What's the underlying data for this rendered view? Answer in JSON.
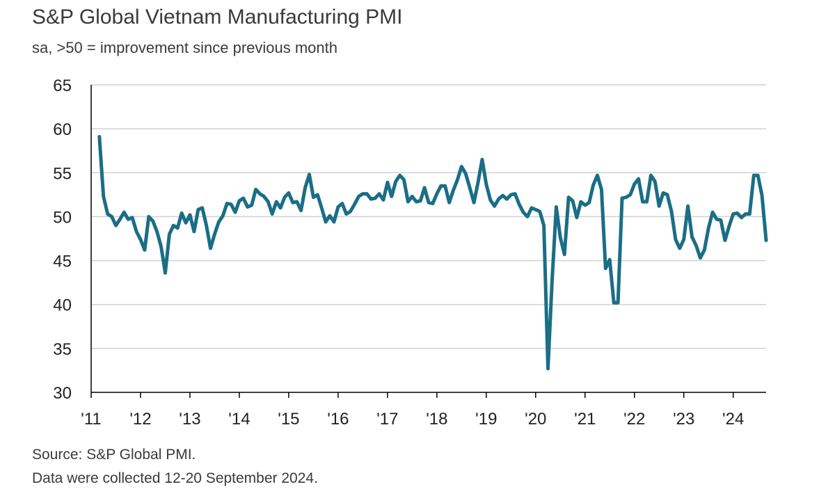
{
  "colors": {
    "line": "#1a6e86",
    "grid": "#d0d0d0",
    "text": "#333333"
  },
  "footer": {
    "source": "Source: S&P Global PMI.",
    "collected": "Data were collected 12-20 September 2024."
  },
  "chart_data": {
    "type": "line",
    "title": "S&P Global Vietnam Manufacturing PMI",
    "subtitle": "sa, >50 = improvement since previous month",
    "ylim": [
      30,
      65
    ],
    "yticks": [
      30,
      35,
      40,
      45,
      50,
      55,
      60,
      65
    ],
    "xlim": [
      "2011-01",
      "2024-09"
    ],
    "xticks": [
      {
        "date": "2011-01",
        "label": "'11"
      },
      {
        "date": "2012-01",
        "label": "'12"
      },
      {
        "date": "2013-01",
        "label": "'13"
      },
      {
        "date": "2014-01",
        "label": "'14"
      },
      {
        "date": "2015-01",
        "label": "'15"
      },
      {
        "date": "2016-01",
        "label": "'16"
      },
      {
        "date": "2017-01",
        "label": "'17"
      },
      {
        "date": "2018-01",
        "label": "'18"
      },
      {
        "date": "2019-01",
        "label": "'19"
      },
      {
        "date": "2020-01",
        "label": "'20"
      },
      {
        "date": "2021-01",
        "label": "'21"
      },
      {
        "date": "2022-01",
        "label": "'22"
      },
      {
        "date": "2023-01",
        "label": "'23"
      },
      {
        "date": "2024-01",
        "label": "'24"
      }
    ],
    "grid": true,
    "legend": "none",
    "series": [
      {
        "x": [
          "2011-03",
          "2011-04",
          "2011-05",
          "2011-06",
          "2011-07",
          "2011-08",
          "2011-09",
          "2011-10",
          "2011-11",
          "2011-12",
          "2012-01",
          "2012-02",
          "2012-03",
          "2012-04",
          "2012-05",
          "2012-06",
          "2012-07",
          "2012-08",
          "2012-09",
          "2012-10",
          "2012-11",
          "2012-12",
          "2013-01",
          "2013-02",
          "2013-03",
          "2013-04",
          "2013-05",
          "2013-06",
          "2013-07",
          "2013-08",
          "2013-09",
          "2013-10",
          "2013-11",
          "2013-12",
          "2014-01",
          "2014-02",
          "2014-03",
          "2014-04",
          "2014-05",
          "2014-06",
          "2014-07",
          "2014-08",
          "2014-09",
          "2014-10",
          "2014-11",
          "2014-12",
          "2015-01",
          "2015-02",
          "2015-03",
          "2015-04",
          "2015-05",
          "2015-06",
          "2015-07",
          "2015-08",
          "2015-09",
          "2015-10",
          "2015-11",
          "2015-12",
          "2016-01",
          "2016-02",
          "2016-03",
          "2016-04",
          "2016-05",
          "2016-06",
          "2016-07",
          "2016-08",
          "2016-09",
          "2016-10",
          "2016-11",
          "2016-12",
          "2017-01",
          "2017-02",
          "2017-03",
          "2017-04",
          "2017-05",
          "2017-06",
          "2017-07",
          "2017-08",
          "2017-09",
          "2017-10",
          "2017-11",
          "2017-12",
          "2018-01",
          "2018-02",
          "2018-03",
          "2018-04",
          "2018-05",
          "2018-06",
          "2018-07",
          "2018-08",
          "2018-09",
          "2018-10",
          "2018-11",
          "2018-12",
          "2019-01",
          "2019-02",
          "2019-03",
          "2019-04",
          "2019-05",
          "2019-06",
          "2019-07",
          "2019-08",
          "2019-09",
          "2019-10",
          "2019-11",
          "2019-12",
          "2020-01",
          "2020-02",
          "2020-03",
          "2020-04",
          "2020-05",
          "2020-06",
          "2020-07",
          "2020-08",
          "2020-09",
          "2020-10",
          "2020-11",
          "2020-12",
          "2021-01",
          "2021-02",
          "2021-03",
          "2021-04",
          "2021-05",
          "2021-06",
          "2021-07",
          "2021-08",
          "2021-09",
          "2021-10",
          "2021-11",
          "2021-12",
          "2022-01",
          "2022-02",
          "2022-03",
          "2022-04",
          "2022-05",
          "2022-06",
          "2022-07",
          "2022-08",
          "2022-09",
          "2022-10",
          "2022-11",
          "2022-12",
          "2023-01",
          "2023-02",
          "2023-03",
          "2023-04",
          "2023-05",
          "2023-06",
          "2023-07",
          "2023-08",
          "2023-09",
          "2023-10",
          "2023-11",
          "2023-12",
          "2024-01",
          "2024-02",
          "2024-03",
          "2024-04",
          "2024-05",
          "2024-06",
          "2024-07",
          "2024-08",
          "2024-09"
        ],
        "values": [
          59.1,
          52.3,
          50.3,
          50.0,
          49.0,
          49.7,
          50.5,
          49.7,
          49.9,
          48.3,
          47.4,
          46.2,
          50.0,
          49.5,
          48.3,
          46.6,
          43.6,
          48.0,
          49.0,
          48.7,
          50.4,
          49.3,
          50.2,
          48.3,
          50.8,
          51.0,
          49.0,
          46.4,
          48.0,
          49.4,
          50.1,
          51.5,
          51.4,
          50.5,
          51.8,
          52.1,
          51.1,
          51.3,
          53.1,
          52.6,
          52.3,
          51.7,
          50.3,
          51.7,
          51.0,
          52.2,
          52.7,
          51.6,
          51.7,
          50.7,
          53.3,
          54.8,
          52.2,
          52.5,
          51.0,
          49.4,
          50.1,
          49.4,
          51.1,
          51.5,
          50.3,
          50.6,
          51.4,
          52.3,
          52.6,
          52.6,
          52.0,
          52.1,
          52.6,
          51.9,
          53.9,
          52.3,
          54.0,
          54.7,
          54.2,
          51.7,
          52.3,
          51.7,
          51.8,
          53.3,
          51.6,
          51.5,
          52.6,
          53.5,
          53.5,
          51.6,
          53.0,
          54.2,
          55.7,
          54.9,
          53.3,
          51.6,
          53.9,
          56.5,
          53.7,
          51.9,
          51.2,
          52.0,
          52.4,
          52.0,
          52.5,
          52.6,
          51.4,
          50.5,
          50.0,
          51.0,
          50.8,
          50.6,
          49.0,
          32.7,
          42.7,
          51.1,
          47.6,
          45.7,
          52.2,
          51.8,
          49.9,
          51.7,
          51.3,
          51.6,
          53.6,
          54.7,
          53.1,
          44.1,
          45.1,
          40.2,
          40.2,
          52.1,
          52.2,
          52.5,
          53.7,
          54.3,
          51.7,
          51.7,
          54.7,
          54.0,
          51.2,
          52.7,
          52.5,
          50.6,
          47.4,
          46.4,
          47.4,
          51.2,
          47.7,
          46.7,
          45.3,
          46.2,
          48.7,
          50.5,
          49.7,
          49.6,
          47.3,
          48.9,
          50.3,
          50.4,
          49.9,
          50.3,
          50.3,
          54.7,
          54.7,
          52.4,
          47.3
        ]
      }
    ]
  }
}
